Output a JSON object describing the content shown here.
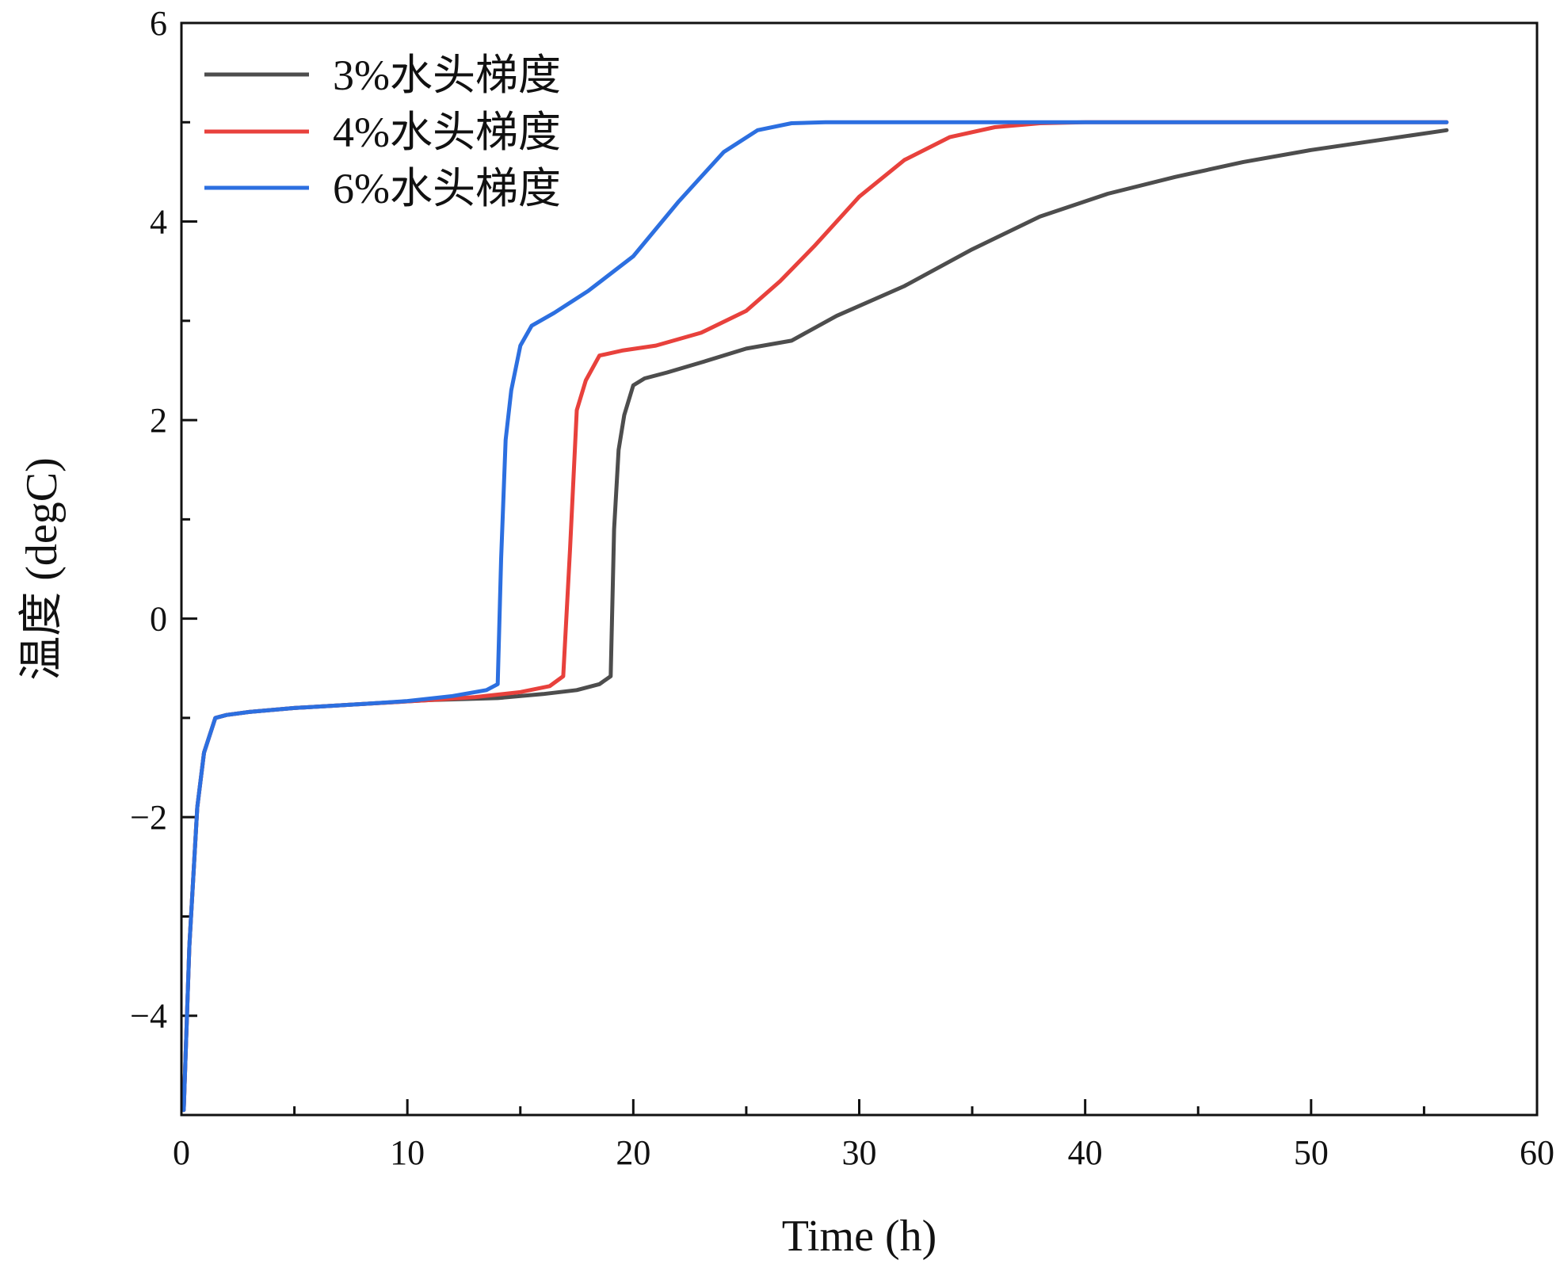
{
  "chart_data": {
    "type": "line",
    "title": "",
    "xlabel": "Time (h)",
    "ylabel": "温度 (degC)",
    "xlim": [
      0,
      60
    ],
    "ylim": [
      -5,
      6
    ],
    "xticks": [
      0,
      10,
      20,
      30,
      40,
      50,
      60
    ],
    "yticks": [
      -4,
      -2,
      0,
      2,
      4,
      6
    ],
    "xtick_labels": [
      "0",
      "10",
      "20",
      "30",
      "40",
      "50",
      "60"
    ],
    "ytick_labels": [
      "−4",
      "−2",
      "0",
      "2",
      "4",
      "6"
    ],
    "x_minor_step": 5,
    "y_minor_step": 1,
    "grid": false,
    "legend_position": "top-left",
    "series": [
      {
        "name": "3%水头梯度",
        "color": "#4d4d4d",
        "x": [
          0.1,
          0.35,
          0.7,
          1.0,
          1.5,
          2.0,
          3,
          5,
          8,
          11,
          14,
          16,
          17.5,
          18.5,
          19.0,
          19.15,
          19.35,
          19.6,
          20.0,
          20.5,
          21.5,
          23,
          25,
          27,
          29,
          32,
          35,
          38,
          41,
          44,
          47,
          50,
          53,
          56
        ],
        "y": [
          -4.95,
          -3.3,
          -1.9,
          -1.35,
          -1.0,
          -0.97,
          -0.94,
          -0.9,
          -0.86,
          -0.82,
          -0.8,
          -0.76,
          -0.72,
          -0.66,
          -0.58,
          0.9,
          1.7,
          2.05,
          2.35,
          2.42,
          2.48,
          2.58,
          2.72,
          2.8,
          3.05,
          3.35,
          3.72,
          4.05,
          4.28,
          4.45,
          4.6,
          4.72,
          4.82,
          4.92
        ]
      },
      {
        "name": "4%水头梯度",
        "color": "#e8413c",
        "x": [
          0.1,
          0.35,
          0.7,
          1.0,
          1.5,
          2.0,
          3,
          5,
          8,
          11,
          13,
          15,
          16.3,
          16.9,
          17.2,
          17.5,
          17.9,
          18.5,
          19.5,
          21,
          23,
          25,
          26.5,
          28,
          30,
          32,
          34,
          36,
          38,
          40,
          45,
          50,
          56
        ],
        "y": [
          -4.95,
          -3.3,
          -1.9,
          -1.35,
          -1.0,
          -0.97,
          -0.94,
          -0.9,
          -0.86,
          -0.82,
          -0.79,
          -0.74,
          -0.68,
          -0.58,
          0.7,
          2.1,
          2.4,
          2.65,
          2.7,
          2.75,
          2.88,
          3.1,
          3.4,
          3.75,
          4.25,
          4.62,
          4.85,
          4.95,
          4.99,
          5.0,
          5.0,
          5.0,
          5.0
        ]
      },
      {
        "name": "6%水头梯度",
        "color": "#2c6fe0",
        "x": [
          0.1,
          0.35,
          0.7,
          1.0,
          1.5,
          2.0,
          3,
          5,
          8,
          10,
          12,
          13.5,
          14.0,
          14.15,
          14.35,
          14.6,
          15.0,
          15.5,
          16.5,
          18,
          20,
          22,
          24,
          25.5,
          27,
          28.5,
          30,
          35,
          40,
          45,
          50,
          56
        ],
        "y": [
          -4.95,
          -3.3,
          -1.9,
          -1.35,
          -1.0,
          -0.97,
          -0.94,
          -0.9,
          -0.86,
          -0.83,
          -0.78,
          -0.72,
          -0.66,
          0.6,
          1.8,
          2.3,
          2.75,
          2.95,
          3.08,
          3.3,
          3.65,
          4.2,
          4.7,
          4.92,
          4.99,
          5.0,
          5.0,
          5.0,
          5.0,
          5.0,
          5.0,
          5.0
        ]
      }
    ]
  }
}
